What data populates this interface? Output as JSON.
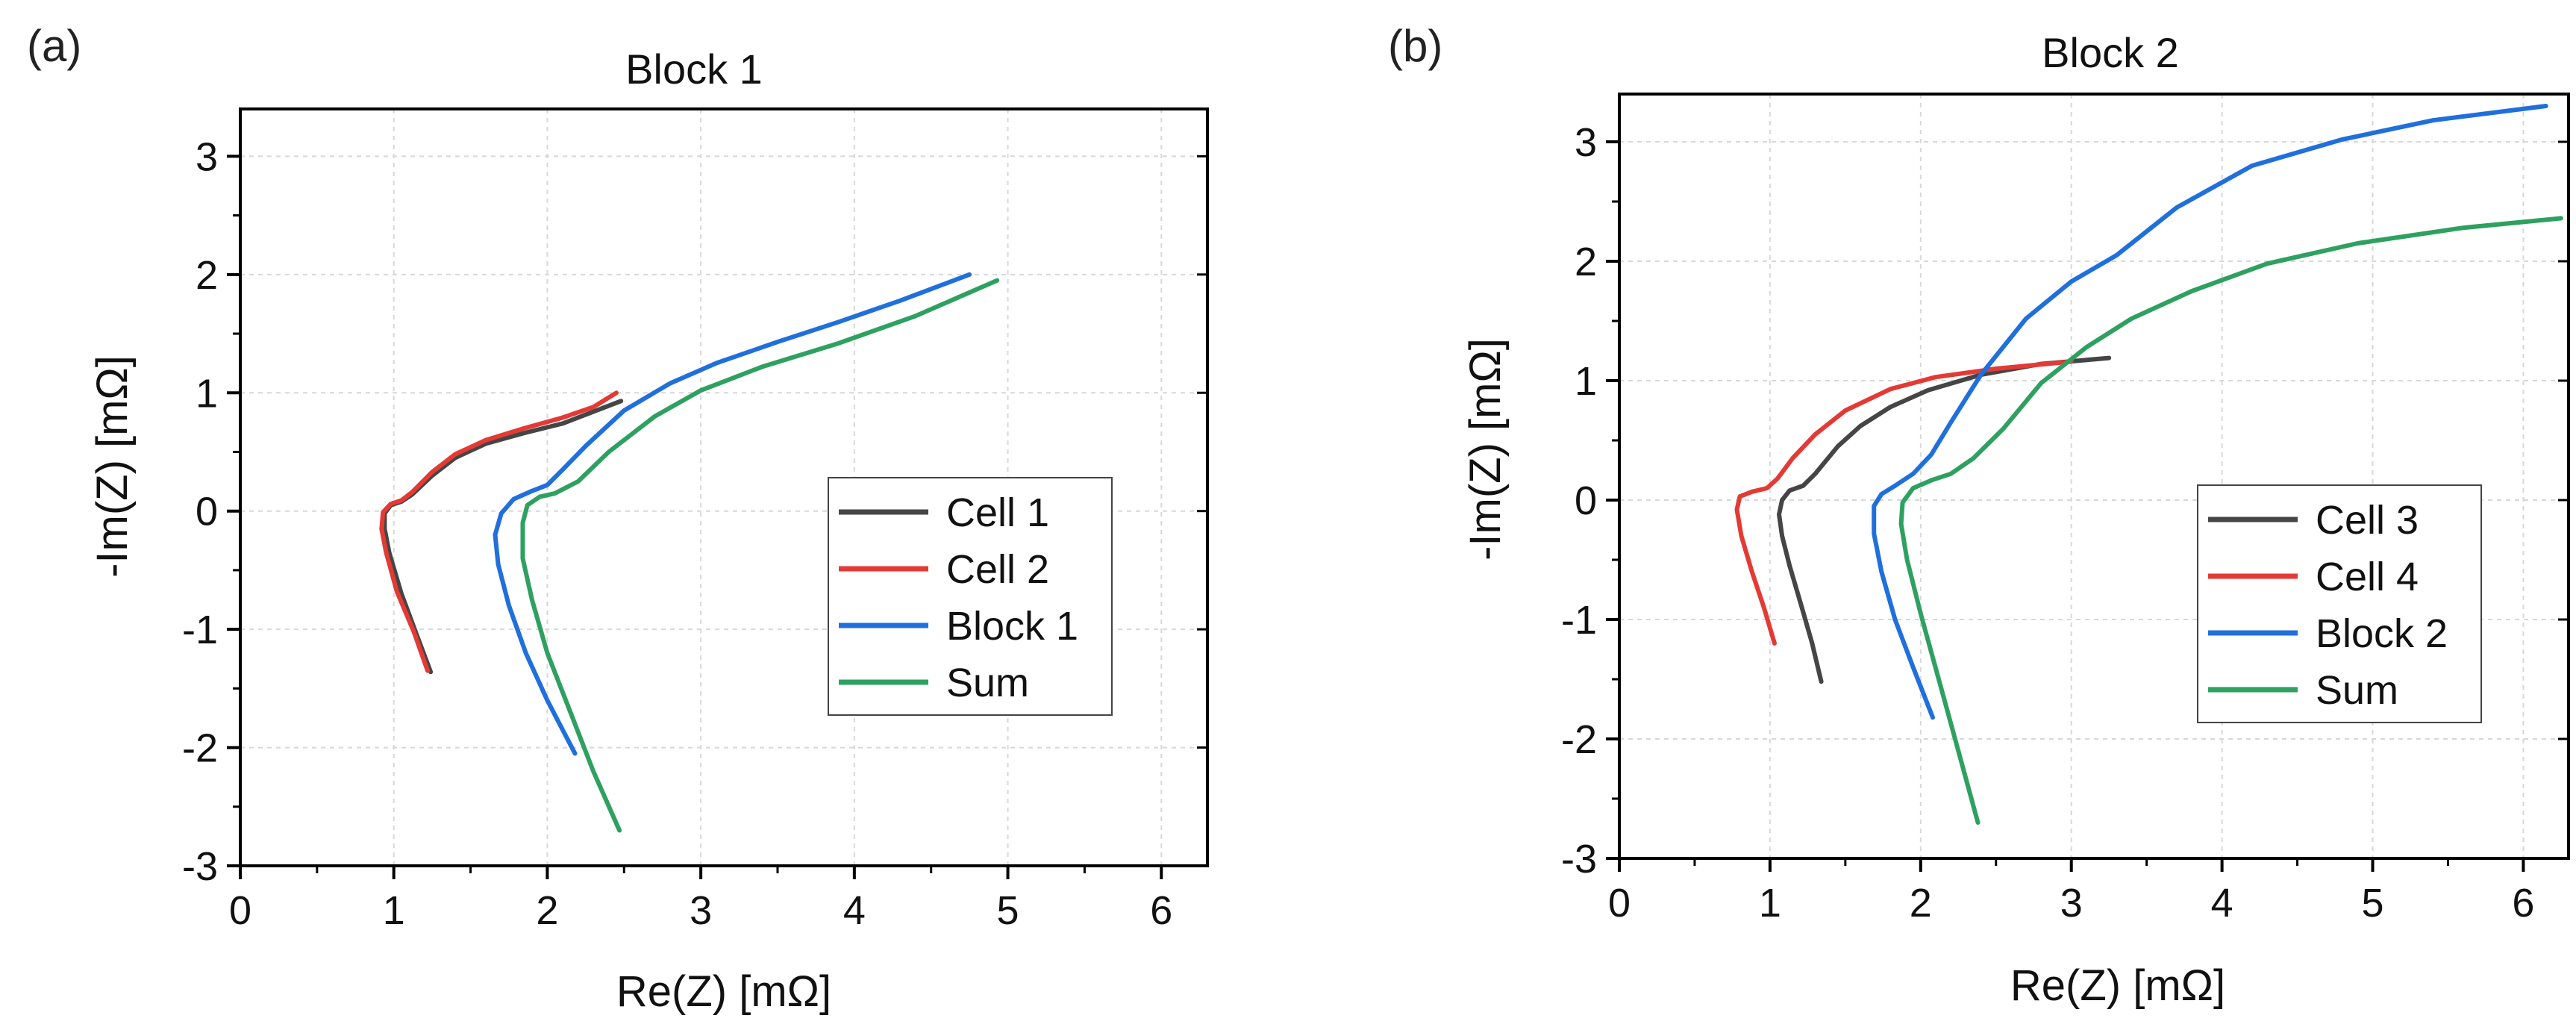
{
  "colors": {
    "cell_a": "#454545",
    "cell_b": "#e33a35",
    "block": "#1f6fdc",
    "sum": "#2ea060",
    "grid": "#d8d8d8",
    "axis": "#000000"
  },
  "chart_data": [
    {
      "type": "line",
      "panel_label": "(a)",
      "title": "Block 1",
      "xlabel": "Re(Z) [mΩ]",
      "ylabel": "-Im(Z) [mΩ]",
      "xlim": [
        0,
        6.3
      ],
      "ylim": [
        -3,
        3.4
      ],
      "xticks": [
        0,
        1,
        2,
        3,
        4,
        5,
        6
      ],
      "yticks": [
        -3,
        -2,
        -1,
        0,
        1,
        2,
        3
      ],
      "grid": true,
      "legend_position": "center-right",
      "series": [
        {
          "name": "Cell 1",
          "color": "#454545",
          "points": [
            [
              1.24,
              -1.36
            ],
            [
              1.15,
              -1.05
            ],
            [
              1.05,
              -0.7
            ],
            [
              0.97,
              -0.35
            ],
            [
              0.94,
              -0.15
            ],
            [
              0.94,
              -0.02
            ],
            [
              0.98,
              0.05
            ],
            [
              1.05,
              0.08
            ],
            [
              1.12,
              0.14
            ],
            [
              1.25,
              0.3
            ],
            [
              1.4,
              0.45
            ],
            [
              1.6,
              0.57
            ],
            [
              1.85,
              0.66
            ],
            [
              2.1,
              0.74
            ],
            [
              2.3,
              0.84
            ],
            [
              2.48,
              0.93
            ]
          ]
        },
        {
          "name": "Cell 2",
          "color": "#e33a35",
          "points": [
            [
              1.22,
              -1.35
            ],
            [
              1.13,
              -1.02
            ],
            [
              1.02,
              -0.68
            ],
            [
              0.95,
              -0.35
            ],
            [
              0.92,
              -0.15
            ],
            [
              0.93,
              -0.01
            ],
            [
              0.98,
              0.06
            ],
            [
              1.05,
              0.09
            ],
            [
              1.12,
              0.16
            ],
            [
              1.25,
              0.33
            ],
            [
              1.4,
              0.48
            ],
            [
              1.6,
              0.6
            ],
            [
              1.85,
              0.7
            ],
            [
              2.1,
              0.79
            ],
            [
              2.3,
              0.88
            ],
            [
              2.45,
              1.0
            ]
          ]
        },
        {
          "name": "Block 1",
          "color": "#1f6fdc",
          "points": [
            [
              2.18,
              -2.05
            ],
            [
              2.0,
              -1.6
            ],
            [
              1.86,
              -1.2
            ],
            [
              1.75,
              -0.8
            ],
            [
              1.68,
              -0.45
            ],
            [
              1.66,
              -0.2
            ],
            [
              1.7,
              -0.02
            ],
            [
              1.78,
              0.1
            ],
            [
              1.9,
              0.17
            ],
            [
              2.0,
              0.22
            ],
            [
              2.1,
              0.35
            ],
            [
              2.25,
              0.55
            ],
            [
              2.5,
              0.85
            ],
            [
              2.8,
              1.08
            ],
            [
              3.1,
              1.25
            ],
            [
              3.5,
              1.43
            ],
            [
              3.9,
              1.6
            ],
            [
              4.3,
              1.78
            ],
            [
              4.75,
              2.0
            ]
          ]
        },
        {
          "name": "Sum",
          "color": "#2ea060",
          "points": [
            [
              2.47,
              -2.7
            ],
            [
              2.3,
              -2.2
            ],
            [
              2.15,
              -1.7
            ],
            [
              2.0,
              -1.2
            ],
            [
              1.9,
              -0.75
            ],
            [
              1.84,
              -0.4
            ],
            [
              1.84,
              -0.1
            ],
            [
              1.87,
              0.05
            ],
            [
              1.95,
              0.12
            ],
            [
              2.05,
              0.15
            ],
            [
              2.2,
              0.25
            ],
            [
              2.4,
              0.5
            ],
            [
              2.7,
              0.8
            ],
            [
              3.0,
              1.02
            ],
            [
              3.4,
              1.22
            ],
            [
              3.9,
              1.42
            ],
            [
              4.4,
              1.65
            ],
            [
              4.93,
              1.95
            ]
          ]
        }
      ]
    },
    {
      "type": "line",
      "panel_label": "(b)",
      "title": "Block 2",
      "xlabel": "Re(Z) [mΩ]",
      "ylabel": "-Im(Z) [mΩ]",
      "xlim": [
        0,
        6.3
      ],
      "ylim": [
        -3,
        3.4
      ],
      "xticks": [
        0,
        1,
        2,
        3,
        4,
        5,
        6
      ],
      "yticks": [
        -3,
        -2,
        -1,
        0,
        1,
        2,
        3
      ],
      "grid": true,
      "legend_position": "center-right",
      "series": [
        {
          "name": "Cell 3",
          "color": "#454545",
          "points": [
            [
              1.34,
              -1.52
            ],
            [
              1.28,
              -1.2
            ],
            [
              1.2,
              -0.85
            ],
            [
              1.13,
              -0.55
            ],
            [
              1.08,
              -0.3
            ],
            [
              1.06,
              -0.12
            ],
            [
              1.08,
              0.0
            ],
            [
              1.13,
              0.08
            ],
            [
              1.22,
              0.12
            ],
            [
              1.3,
              0.22
            ],
            [
              1.45,
              0.45
            ],
            [
              1.6,
              0.62
            ],
            [
              1.8,
              0.78
            ],
            [
              2.05,
              0.92
            ],
            [
              2.4,
              1.05
            ],
            [
              2.8,
              1.14
            ],
            [
              3.25,
              1.19
            ]
          ]
        },
        {
          "name": "Cell 4",
          "color": "#e33a35",
          "points": [
            [
              1.03,
              -1.2
            ],
            [
              0.96,
              -0.9
            ],
            [
              0.88,
              -0.6
            ],
            [
              0.81,
              -0.3
            ],
            [
              0.78,
              -0.08
            ],
            [
              0.8,
              0.03
            ],
            [
              0.88,
              0.07
            ],
            [
              0.98,
              0.1
            ],
            [
              1.05,
              0.18
            ],
            [
              1.15,
              0.35
            ],
            [
              1.3,
              0.55
            ],
            [
              1.5,
              0.75
            ],
            [
              1.8,
              0.93
            ],
            [
              2.1,
              1.03
            ],
            [
              2.5,
              1.1
            ],
            [
              3.0,
              1.16
            ]
          ]
        },
        {
          "name": "Block 2",
          "color": "#1f6fdc",
          "points": [
            [
              2.08,
              -1.82
            ],
            [
              1.95,
              -1.4
            ],
            [
              1.83,
              -1.0
            ],
            [
              1.74,
              -0.6
            ],
            [
              1.69,
              -0.28
            ],
            [
              1.69,
              -0.05
            ],
            [
              1.74,
              0.05
            ],
            [
              1.83,
              0.12
            ],
            [
              1.95,
              0.22
            ],
            [
              2.07,
              0.38
            ],
            [
              2.2,
              0.65
            ],
            [
              2.4,
              1.05
            ],
            [
              2.7,
              1.52
            ],
            [
              3.0,
              1.83
            ],
            [
              3.3,
              2.05
            ],
            [
              3.7,
              2.45
            ],
            [
              4.2,
              2.8
            ],
            [
              4.8,
              3.02
            ],
            [
              5.4,
              3.18
            ],
            [
              6.15,
              3.3
            ]
          ]
        },
        {
          "name": "Sum",
          "color": "#2ea060",
          "points": [
            [
              2.38,
              -2.7
            ],
            [
              2.25,
              -2.1
            ],
            [
              2.12,
              -1.5
            ],
            [
              2.0,
              -0.95
            ],
            [
              1.91,
              -0.5
            ],
            [
              1.87,
              -0.2
            ],
            [
              1.88,
              -0.02
            ],
            [
              1.95,
              0.1
            ],
            [
              2.08,
              0.17
            ],
            [
              2.2,
              0.22
            ],
            [
              2.35,
              0.35
            ],
            [
              2.55,
              0.6
            ],
            [
              2.8,
              0.98
            ],
            [
              3.1,
              1.28
            ],
            [
              3.4,
              1.52
            ],
            [
              3.8,
              1.75
            ],
            [
              4.3,
              1.98
            ],
            [
              4.9,
              2.15
            ],
            [
              5.6,
              2.28
            ],
            [
              6.25,
              2.36
            ]
          ]
        }
      ]
    }
  ]
}
